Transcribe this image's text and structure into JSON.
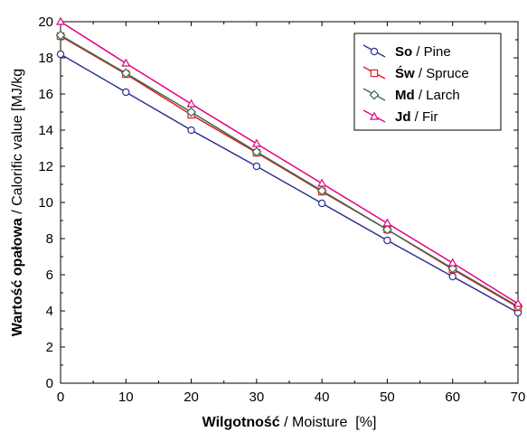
{
  "chart_data": {
    "type": "line",
    "title": "",
    "xlabel_bold": "Wilgotność",
    "xlabel_rest": " / Moisture  [%]",
    "ylabel_bold": "Wartość opałowa",
    "ylabel_rest": " / Calorific value [MJ/kg",
    "x": [
      0,
      10,
      20,
      30,
      40,
      50,
      60,
      70
    ],
    "xticks": [
      "0",
      "10",
      "20",
      "30",
      "40",
      "50",
      "60",
      "70"
    ],
    "yticks": [
      "0",
      "2",
      "4",
      "6",
      "8",
      "10",
      "12",
      "14",
      "16",
      "18",
      "20"
    ],
    "xlim": [
      0,
      70
    ],
    "ylim": [
      0,
      20
    ],
    "grid": false,
    "legend_position": "top-right",
    "series": [
      {
        "name_bold": "So",
        "name_rest": " / Pine",
        "color": "#2e3192",
        "marker": "circle",
        "values": [
          18.2,
          16.1,
          14.0,
          12.0,
          9.95,
          7.9,
          5.9,
          3.9
        ]
      },
      {
        "name_bold": "Św",
        "name_rest": " / Spruce",
        "color": "#e21d24",
        "marker": "square",
        "values": [
          19.2,
          17.1,
          14.85,
          12.75,
          10.6,
          8.5,
          6.3,
          4.2
        ]
      },
      {
        "name_bold": "Md",
        "name_rest": " / Larch",
        "color": "#3d6b4a",
        "marker": "diamond",
        "values": [
          19.25,
          17.15,
          15.0,
          12.8,
          10.65,
          8.5,
          6.35,
          4.25
        ]
      },
      {
        "name_bold": "Jd",
        "name_rest": " / Fir",
        "color": "#e3007e",
        "marker": "triangle",
        "values": [
          20.0,
          17.7,
          15.45,
          13.25,
          11.05,
          8.85,
          6.65,
          4.4
        ]
      }
    ]
  }
}
